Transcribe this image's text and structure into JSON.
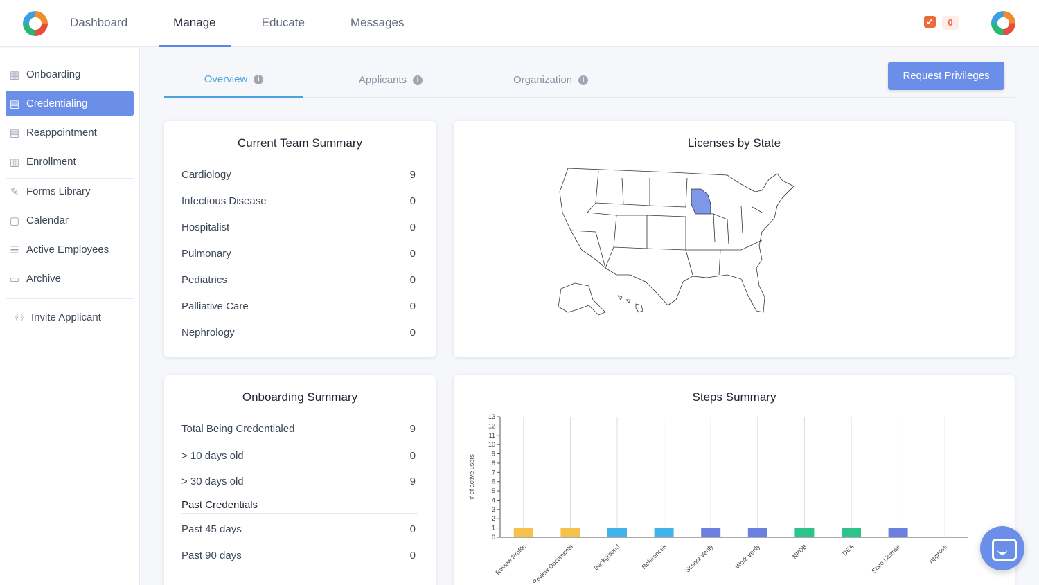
{
  "topnav": {
    "tabs": [
      "Dashboard",
      "Manage",
      "Educate",
      "Messages"
    ],
    "active_tab": "Manage",
    "task_count": "0"
  },
  "sidebar": {
    "items": [
      {
        "label": "Onboarding",
        "icon": "building-icon"
      },
      {
        "label": "Credentialing",
        "icon": "id-card-icon"
      },
      {
        "label": "Reappointment",
        "icon": "id-card-icon"
      },
      {
        "label": "Enrollment",
        "icon": "hospital-icon"
      },
      {
        "label": "Forms Library",
        "icon": "edit-form-icon"
      },
      {
        "label": "Calendar",
        "icon": "calendar-icon"
      },
      {
        "label": "Active Employees",
        "icon": "list-icon"
      },
      {
        "label": "Archive",
        "icon": "archive-icon"
      },
      {
        "label": "Invite Applicant",
        "icon": "user-plus-icon"
      }
    ],
    "active_item": "Credentialing"
  },
  "subtabs": {
    "items": [
      "Overview",
      "Applicants",
      "Organization"
    ],
    "active": "Overview",
    "request_button": "Request Privileges"
  },
  "team_summary": {
    "title": "Current Team Summary",
    "rows": [
      {
        "label": "Cardiology",
        "value": "9"
      },
      {
        "label": "Infectious Disease",
        "value": "0"
      },
      {
        "label": "Hospitalist",
        "value": "0"
      },
      {
        "label": "Pulmonary",
        "value": "0"
      },
      {
        "label": "Pediatrics",
        "value": "0"
      },
      {
        "label": "Palliative Care",
        "value": "0"
      },
      {
        "label": "Nephrology",
        "value": "0"
      }
    ]
  },
  "licenses": {
    "title": "Licenses by State",
    "highlight_color": "#7f97e8",
    "highlighted_state": "Wisconsin"
  },
  "onboarding_summary": {
    "title": "Onboarding Summary",
    "rows": [
      {
        "label": "Total Being Credentialed",
        "value": "9"
      },
      {
        "label": "> 10 days old",
        "value": "0"
      },
      {
        "label": "> 30 days old",
        "value": "9"
      }
    ],
    "past_heading": "Past Credentials",
    "past_rows": [
      {
        "label": "Past 45 days",
        "value": "0"
      },
      {
        "label": "Past 90 days",
        "value": "0"
      }
    ]
  },
  "steps_summary": {
    "title": "Steps Summary"
  },
  "chart_data": {
    "type": "bar",
    "title": "Steps Summary",
    "xlabel": "",
    "ylabel": "# of active users",
    "ylim": [
      0,
      13
    ],
    "yticks": [
      0,
      1,
      2,
      3,
      4,
      5,
      6,
      7,
      8,
      9,
      10,
      11,
      12,
      13
    ],
    "grid": "vertical",
    "categories": [
      "Review Profile",
      "Review Documents",
      "Background",
      "References",
      "School Verify",
      "Work Verify",
      "NPDB",
      "DEA",
      "State License",
      "Approve"
    ],
    "values": [
      1,
      1,
      1,
      1,
      1,
      1,
      1,
      1,
      1,
      0
    ],
    "colors": [
      "#f6c04d",
      "#f6c04d",
      "#3fb3ea",
      "#3fb3ea",
      "#6b7fe0",
      "#6b7fe0",
      "#2cc48b",
      "#2cc48b",
      "#6b7fe0",
      "#6b7fe0"
    ]
  }
}
